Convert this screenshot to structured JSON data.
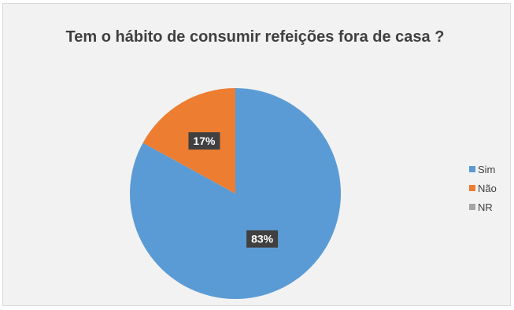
{
  "chart_data": {
    "type": "pie",
    "title": "Tem o hábito de consumir refeições fora de casa ?",
    "categories": [
      "Sim",
      "Não",
      "NR"
    ],
    "values": [
      83,
      17,
      0
    ],
    "labels": [
      "83%",
      "17%",
      ""
    ],
    "colors": [
      "#5b9bd5",
      "#ed7d31",
      "#a5a5a5"
    ],
    "legend_position": "right"
  }
}
